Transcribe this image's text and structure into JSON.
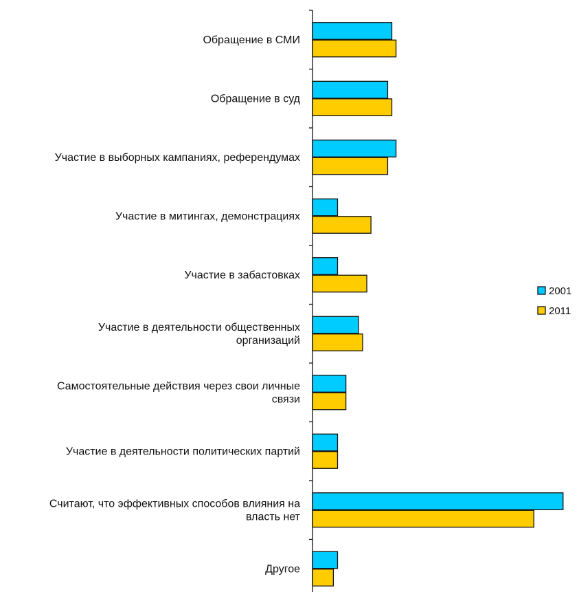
{
  "chart_data": {
    "type": "bar",
    "orientation": "horizontal",
    "categories": [
      [
        "Обращение в СМИ"
      ],
      [
        "Обращение в суд"
      ],
      [
        "Участие в выборных кампаниях, референдумах"
      ],
      [
        "Участие в митингах, демонстрациях"
      ],
      [
        "Участие в забастовках"
      ],
      [
        "Участие в деятельности общественных",
        "организаций"
      ],
      [
        "Самостоятельные действия через свои личные",
        "связи"
      ],
      [
        "Участие в деятельности политических партий"
      ],
      [
        "Считают, что эффективных способов влияния на",
        "власть нет"
      ],
      [
        "Другое"
      ]
    ],
    "series": [
      {
        "name": "2001",
        "color": "#00ccff",
        "values": [
          19,
          18,
          20,
          6,
          6,
          11,
          8,
          6,
          60,
          6
        ]
      },
      {
        "name": "2011",
        "color": "#ffcc00",
        "values": [
          20,
          19,
          18,
          14,
          13,
          12,
          8,
          6,
          53,
          5
        ]
      }
    ],
    "xlim": [
      0,
      60
    ],
    "grid": false,
    "legend": "right"
  }
}
